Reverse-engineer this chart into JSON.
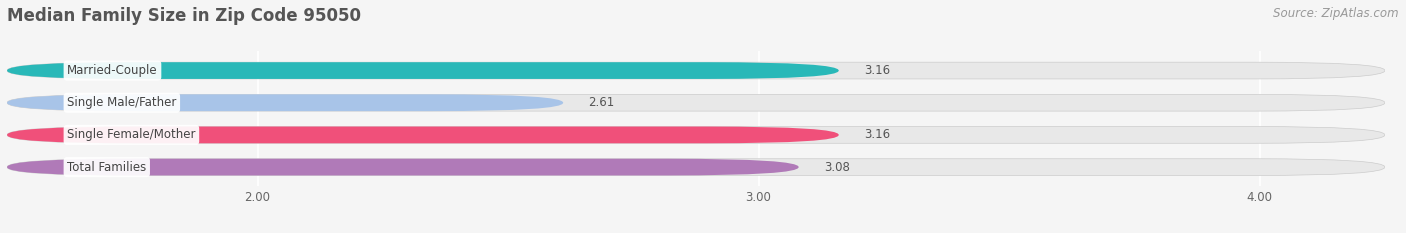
{
  "title": "Median Family Size in Zip Code 95050",
  "source": "Source: ZipAtlas.com",
  "categories": [
    "Married-Couple",
    "Single Male/Father",
    "Single Female/Mother",
    "Total Families"
  ],
  "values": [
    3.16,
    2.61,
    3.16,
    3.08
  ],
  "bar_colors": [
    "#29b8b8",
    "#a8c4e8",
    "#f0507a",
    "#b07ab8"
  ],
  "xlim_min": 1.5,
  "xlim_max": 4.25,
  "xticks": [
    2.0,
    3.0,
    4.0
  ],
  "xtick_labels": [
    "2.00",
    "3.00",
    "4.00"
  ],
  "background_color": "#f5f5f5",
  "bar_bg_color": "#e8e8e8",
  "title_fontsize": 12,
  "source_fontsize": 8.5,
  "label_fontsize": 8.5,
  "value_fontsize": 8.5,
  "tick_fontsize": 8.5,
  "bar_height": 0.52,
  "bar_gap": 0.15
}
